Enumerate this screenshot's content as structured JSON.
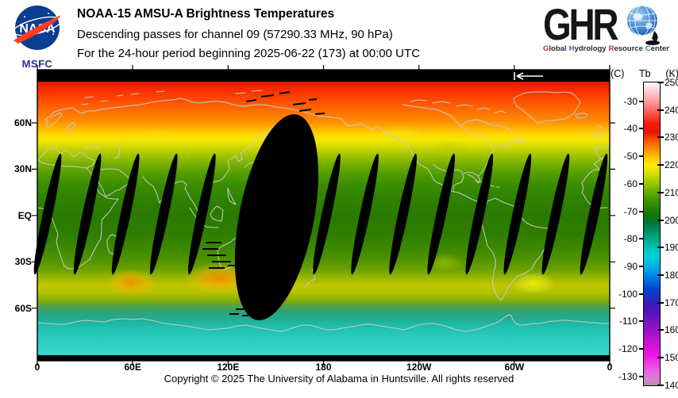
{
  "header": {
    "nasa": {
      "logo_text": "NASA",
      "caption": "MSFC"
    },
    "title": "NOAA-15 AMSU-A Brightness Temperatures",
    "subtitle1": "Descending passes for channel 09 (57290.33 MHz, 90 hPa)",
    "subtitle2": "For the 24-hour period beginning 2025-06-22 (173) at 00:00 UTC",
    "ghrc": {
      "logo_text": "GHR",
      "caption_words": [
        [
          "Global",
          "#b5342a"
        ],
        [
          "Hydrology",
          "#2f6fba"
        ],
        [
          "Resource",
          "#b5342a"
        ],
        [
          "Center",
          "#2f6fba"
        ]
      ]
    }
  },
  "map": {
    "lat_ticks": [
      "60N",
      "30N",
      "EQ",
      "30S",
      "60S"
    ],
    "lon_ticks": [
      "0",
      "60E",
      "120E",
      "180",
      "120W",
      "60W",
      "0"
    ]
  },
  "colorbar": {
    "header_c": "(C)",
    "header_tb": "Tb",
    "header_k": "(K)",
    "kelvin_ticks": [
      250,
      240,
      230,
      220,
      210,
      200,
      190,
      180,
      170,
      160,
      150,
      140
    ],
    "celsius_ticks": [
      -30,
      -40,
      -50,
      -60,
      -70,
      -80,
      -90,
      -100,
      -110,
      -120,
      -130
    ],
    "stops": [
      [
        250,
        "#ffffff"
      ],
      [
        247,
        "#ffd2d2"
      ],
      [
        244,
        "#ffa8a8"
      ],
      [
        241,
        "#ff7878"
      ],
      [
        238,
        "#fb4a42"
      ],
      [
        235,
        "#f01e08"
      ],
      [
        232,
        "#e81400"
      ],
      [
        229,
        "#ff5200"
      ],
      [
        226,
        "#ff8800"
      ],
      [
        223,
        "#ffc000"
      ],
      [
        220,
        "#ffee00"
      ],
      [
        217,
        "#d6e000"
      ],
      [
        214,
        "#a6cb00"
      ],
      [
        211,
        "#74b200"
      ],
      [
        208,
        "#489c00"
      ],
      [
        205,
        "#2a8a00"
      ],
      [
        202,
        "#107800"
      ],
      [
        199,
        "#00743c"
      ],
      [
        196,
        "#008f66"
      ],
      [
        193,
        "#00a98c"
      ],
      [
        190,
        "#00c2b2"
      ],
      [
        187,
        "#00d0d4"
      ],
      [
        184,
        "#00b8e0"
      ],
      [
        181,
        "#0096e8"
      ],
      [
        178,
        "#006ce0"
      ],
      [
        175,
        "#0044d0"
      ],
      [
        172,
        "#2030c2"
      ],
      [
        169,
        "#3c1ab6"
      ],
      [
        166,
        "#5a14bc"
      ],
      [
        163,
        "#7a12c4"
      ],
      [
        160,
        "#9a12cc"
      ],
      [
        157,
        "#b812d2"
      ],
      [
        154,
        "#d414d8"
      ],
      [
        151,
        "#e818e0"
      ],
      [
        148,
        "#ee3ce8"
      ],
      [
        145,
        "#ec64e2"
      ],
      [
        142,
        "#d684ca"
      ],
      [
        140,
        "#a895a8"
      ]
    ]
  },
  "footer": {
    "copyright": "Copyright © 2025 The University of Alabama in Huntsville.  All rights reserved"
  },
  "chart_data": {
    "type": "heatmap",
    "title": "NOAA-15 AMSU-A Brightness Temperatures",
    "satellite": "NOAA-15",
    "instrument": "AMSU-A",
    "channel": "09",
    "frequency_mhz": 57290.33,
    "pressure_level_hpa": 90,
    "pass_type": "Descending",
    "period": "24-hour period beginning 2025-06-22 (173) at 00:00 UTC",
    "projection": "global equirectangular, 0E at left edge",
    "x_axis": {
      "label": "longitude",
      "ticks": [
        "0",
        "60E",
        "120E",
        "180",
        "120W",
        "60W",
        "0"
      ]
    },
    "y_axis": {
      "label": "latitude",
      "ticks": [
        "60N",
        "30N",
        "EQ",
        "30S",
        "60S"
      ]
    },
    "colorbar": {
      "quantity": "Tb",
      "units_right": "K",
      "units_left": "C",
      "kelvin_range": [
        140,
        250
      ],
      "celsius_range": [
        -130,
        -30
      ]
    },
    "lat_profile_tb_k": [
      [
        85,
        240
      ],
      [
        70,
        231
      ],
      [
        60,
        227
      ],
      [
        52,
        221
      ],
      [
        45,
        215
      ],
      [
        35,
        209
      ],
      [
        25,
        205
      ],
      [
        10,
        203
      ],
      [
        0,
        202
      ],
      [
        -15,
        204
      ],
      [
        -28,
        207
      ],
      [
        -38,
        215
      ],
      [
        -44,
        220
      ],
      [
        -52,
        214
      ],
      [
        -58,
        208
      ],
      [
        -64,
        200
      ],
      [
        -70,
        192
      ],
      [
        -80,
        189
      ]
    ],
    "warm_spots": [
      {
        "lon_e": 59,
        "lat": -46,
        "tb_k": 223
      },
      {
        "lon_e": 115,
        "lat": -45,
        "tb_k": 226
      },
      {
        "lon_e": 312,
        "lat": -47,
        "tb_k": 222
      }
    ],
    "data_gaps": {
      "sliver_gap_center_lons_e": [
        6.5,
        31.5,
        55.5,
        79.5,
        103.5,
        182,
        206,
        230,
        254,
        278,
        302,
        326,
        350
      ],
      "large_gap": {
        "lon_e_range": [
          127,
          176
        ],
        "center_lon_e": 150.5
      }
    }
  }
}
